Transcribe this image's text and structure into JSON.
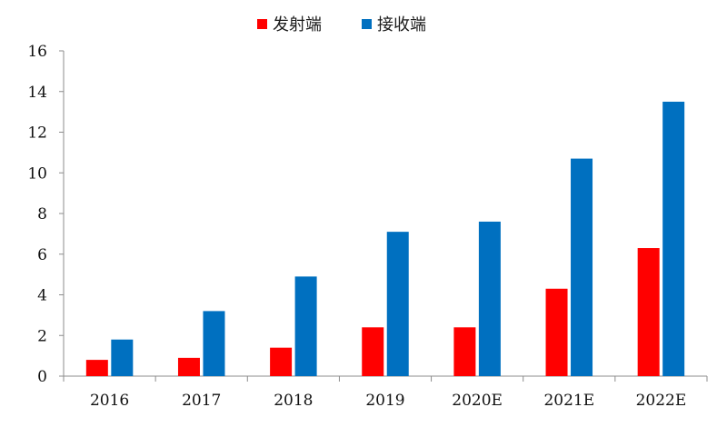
{
  "chart_data": {
    "type": "bar",
    "title": "",
    "xlabel": "",
    "ylabel": "",
    "categories": [
      "2016",
      "2017",
      "2018",
      "2019",
      "2020E",
      "2021E",
      "2022E"
    ],
    "series": [
      {
        "name": "发射端",
        "color": "#ff0000",
        "values": [
          0.8,
          0.9,
          1.4,
          2.4,
          2.4,
          4.3,
          6.3
        ]
      },
      {
        "name": "接收端",
        "color": "#0070c0",
        "values": [
          1.8,
          3.2,
          4.9,
          7.1,
          7.6,
          10.7,
          13.5
        ]
      }
    ],
    "ylim": [
      0,
      16
    ],
    "yticks": [
      "0",
      "2",
      "4",
      "6",
      "8",
      "10",
      "12",
      "14",
      "16"
    ],
    "legend_position": "top-center",
    "grid": false
  }
}
